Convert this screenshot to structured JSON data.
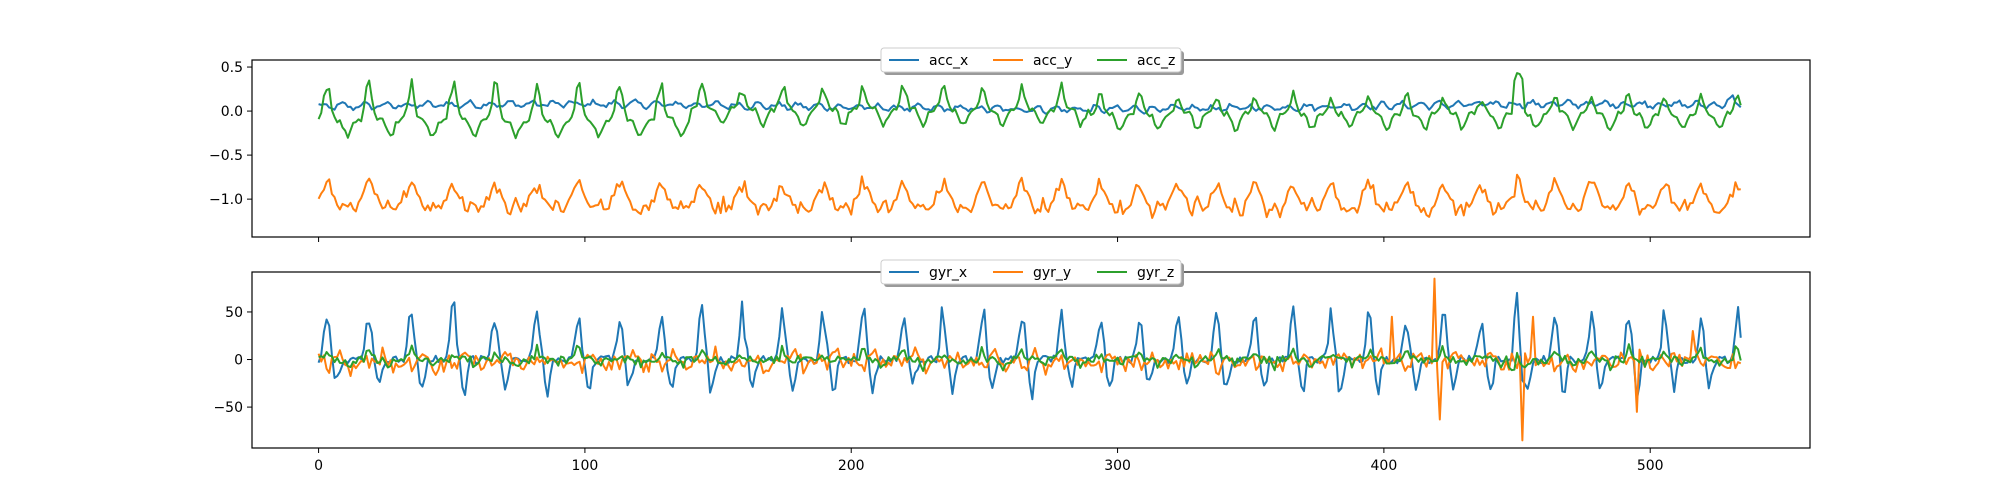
{
  "chart_data": [
    {
      "type": "line",
      "title": "",
      "xlabel": "",
      "ylabel": "",
      "xlim": [
        -25,
        560
      ],
      "ylim": [
        -1.43,
        0.58
      ],
      "x_ticks": [
        0,
        100,
        200,
        300,
        400,
        500
      ],
      "x_tick_labels_visible": false,
      "y_ticks": [
        -1.0,
        -0.5,
        0.0,
        0.5
      ],
      "y_tick_labels": [
        "−1.0",
        "−0.5",
        "0.0",
        "0.5"
      ],
      "grid": false,
      "legend_position": "top-center",
      "n_points": 535,
      "series": [
        {
          "name": "acc_x",
          "color": "#1f77b4",
          "kind": "accx"
        },
        {
          "name": "acc_y",
          "color": "#ff7f0e",
          "kind": "accy"
        },
        {
          "name": "acc_z",
          "color": "#2ca02c",
          "kind": "accz"
        }
      ]
    },
    {
      "type": "line",
      "title": "",
      "xlabel": "",
      "ylabel": "",
      "xlim": [
        -25,
        560
      ],
      "ylim": [
        -93,
        92
      ],
      "x_ticks": [
        0,
        100,
        200,
        300,
        400,
        500
      ],
      "x_tick_labels": [
        "0",
        "100",
        "200",
        "300",
        "400",
        "500"
      ],
      "y_ticks": [
        -50,
        0,
        50
      ],
      "y_tick_labels": [
        "−50",
        "0",
        "50"
      ],
      "grid": false,
      "legend_position": "top-center",
      "n_points": 535,
      "series": [
        {
          "name": "gyr_x",
          "color": "#1f77b4",
          "kind": "gyrx"
        },
        {
          "name": "gyr_y",
          "color": "#ff7f0e",
          "kind": "gyry"
        },
        {
          "name": "gyr_z",
          "color": "#2ca02c",
          "kind": "gyrz"
        }
      ]
    }
  ]
}
